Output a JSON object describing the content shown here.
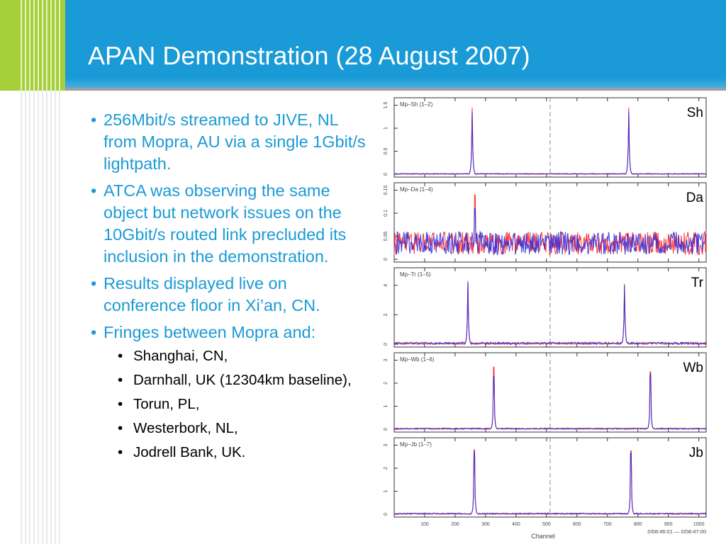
{
  "slide": {
    "title": "APAN Demonstration (28 August 2007)",
    "bullets": [
      "256Mbit/s streamed to JIVE, NL from Mopra, AU via a single 1Gbit/s lightpath.",
      "ATCA was observing the same object but network issues on the 10Gbit/s routed link precluded its inclusion in the demonstration.",
      "Results displayed live on conference floor in Xi’an, CN.",
      "Fringes between Mopra and:"
    ],
    "sub_bullets": [
      "Shanghai, CN,",
      "Darnhall, UK (12304km baseline),",
      "Torun, PL,",
      "Westerbork, NL,",
      "Jodrell Bank, UK."
    ]
  },
  "colors": {
    "header_blue": "#1a9ad6",
    "accent_lime": "#a6cf38",
    "series_red": "#ff3b3b",
    "series_blue": "#2b2bdf"
  },
  "chart_data": {
    "type": "line",
    "xlabel": "Channel",
    "x_ticks": [
      "100",
      "200",
      "300",
      "400",
      "500",
      "600",
      "700",
      "800",
      "900",
      "1000"
    ],
    "xlim": [
      0,
      1024
    ],
    "time_label": "0/08:46:01 — 0/08:47:00",
    "marker_channel": 512,
    "panels": [
      {
        "label": "Sh",
        "baseline": "Mp–Sh (1–2)",
        "y_ticks": [
          "0",
          "0.5",
          "1",
          "1.5"
        ],
        "ylim": [
          0,
          1.6
        ],
        "noise": 0.02,
        "peaks": [
          {
            "x": 256,
            "red": 1.45,
            "blue": 1.35
          },
          {
            "x": 770,
            "red": 1.45,
            "blue": 1.35
          }
        ]
      },
      {
        "label": "Da",
        "baseline": "Mp–Da (1–4)",
        "y_ticks": [
          "0",
          "0.05",
          "0.1",
          "0.15"
        ],
        "ylim": [
          0,
          0.16
        ],
        "noise": 0.035,
        "peaks": [
          {
            "x": 265,
            "red": 0.14,
            "blue": 0.11
          }
        ]
      },
      {
        "label": "Tr",
        "baseline": "Mp–Tr (1–5)",
        "y_ticks": [
          "0",
          "2",
          "4"
        ],
        "ylim": [
          0,
          5
        ],
        "noise": 0.05,
        "peaks": [
          {
            "x": 242,
            "red": 4.3,
            "blue": 4.2
          },
          {
            "x": 756,
            "red": 4.1,
            "blue": 4.0
          }
        ]
      },
      {
        "label": "Wb",
        "baseline": "Mp–Wb (1–6)",
        "y_ticks": [
          "0",
          "1",
          "2",
          "3"
        ],
        "ylim": [
          0,
          3.2
        ],
        "noise": 0.03,
        "peaks": [
          {
            "x": 327,
            "red": 2.7,
            "blue": 2.3
          },
          {
            "x": 841,
            "red": 2.5,
            "blue": 2.4
          }
        ]
      },
      {
        "label": "Jb",
        "baseline": "Mp–Jb (1–7)",
        "y_ticks": [
          "0",
          "1",
          "2",
          "3"
        ],
        "ylim": [
          0,
          3.2
        ],
        "noise": 0.03,
        "peaks": [
          {
            "x": 263,
            "red": 2.8,
            "blue": 2.7
          },
          {
            "x": 777,
            "red": 2.75,
            "blue": 2.65
          }
        ]
      }
    ]
  }
}
